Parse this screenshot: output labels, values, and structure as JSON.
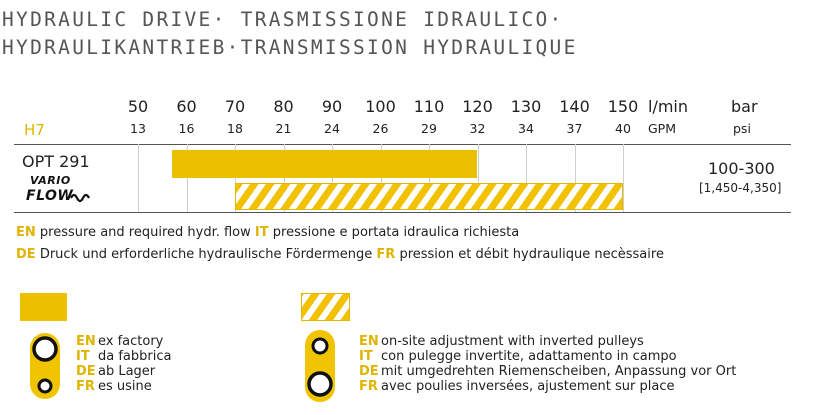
{
  "title": {
    "line1": "HYDRAULIC DRIVE· TRASMISSIONE IDRAULICO·",
    "line2": "HYDRAULIKANTRIEB·TRANSMISSION HYDRAULIQUE"
  },
  "model": "H7",
  "axis": {
    "lmin_ticks": [
      "50",
      "60",
      "70",
      "80",
      "90",
      "100",
      "110",
      "120",
      "130",
      "140",
      "150"
    ],
    "gpm_ticks": [
      "13",
      "16",
      "18",
      "21",
      "24",
      "26",
      "29",
      "32",
      "34",
      "37",
      "40"
    ],
    "lmin_unit": "l/min",
    "gpm_unit": "GPM",
    "bar_unit": "bar",
    "psi_unit": "psi"
  },
  "row": {
    "option": "OPT 291",
    "brand_top": "VARIO",
    "brand_bottom": "FLOW",
    "pressure": "100-300",
    "pressure_psi": "[1,450-4,350]"
  },
  "chart_data": {
    "type": "bar",
    "x_unit": "l/min",
    "x_range": [
      50,
      150
    ],
    "series": [
      {
        "name": "ex factory",
        "style": "solid",
        "range": [
          57,
          120
        ]
      },
      {
        "name": "on-site adjustment with inverted pulleys",
        "style": "hatched",
        "range": [
          70,
          150
        ]
      }
    ],
    "pressure_bar": "100-300",
    "pressure_psi": "[1,450-4,350]"
  },
  "description": {
    "line1": [
      {
        "code": "EN",
        "text": "pressure and required hydr. flow"
      },
      {
        "code": "IT",
        "text": "pressione e portata idraulica richiesta"
      }
    ],
    "line2": [
      {
        "code": "DE",
        "text": "Druck und erforderliche hydraulische Fördermenge"
      },
      {
        "code": "FR",
        "text": "pression et débit hydraulique necèssaire"
      }
    ]
  },
  "legend": {
    "factory": [
      {
        "code": "EN",
        "text": "ex factory"
      },
      {
        "code": "IT",
        "text": "da fabbrica"
      },
      {
        "code": "DE",
        "text": "ab Lager"
      },
      {
        "code": "FR",
        "text": "es usine"
      }
    ],
    "onsite": [
      {
        "code": "EN",
        "text": "on-site adjustment with inverted pulleys"
      },
      {
        "code": "IT",
        "text": "con pulegge invertite, adattamento in campo"
      },
      {
        "code": "DE",
        "text": "mit umgedrehten Riemenscheiben, Anpassung vor Ort"
      },
      {
        "code": "FR",
        "text": "avec poulies inversées, ajustement sur place"
      }
    ]
  },
  "colors": {
    "accent": "#EBC000",
    "text": "#222222",
    "title": "#555555"
  }
}
